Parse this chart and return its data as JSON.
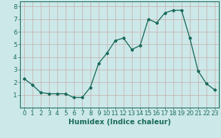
{
  "x": [
    0,
    1,
    2,
    3,
    4,
    5,
    6,
    7,
    8,
    9,
    10,
    11,
    12,
    13,
    14,
    15,
    16,
    17,
    18,
    19,
    20,
    21,
    22,
    23
  ],
  "y": [
    2.3,
    1.8,
    1.2,
    1.1,
    1.1,
    1.1,
    0.8,
    0.8,
    1.6,
    3.5,
    4.3,
    5.3,
    5.5,
    4.6,
    4.9,
    7.0,
    6.7,
    7.5,
    7.7,
    7.7,
    5.5,
    2.9,
    1.9,
    1.4
  ],
  "line_color": "#1a6b5a",
  "marker": "D",
  "marker_size": 2.0,
  "linewidth": 1.0,
  "xlabel": "Humidex (Indice chaleur)",
  "xlim": [
    -0.5,
    23.5
  ],
  "ylim": [
    0,
    8.4
  ],
  "xticks": [
    0,
    1,
    2,
    3,
    4,
    5,
    6,
    7,
    8,
    9,
    10,
    11,
    12,
    13,
    14,
    15,
    16,
    17,
    18,
    19,
    20,
    21,
    22,
    23
  ],
  "yticks": [
    1,
    2,
    3,
    4,
    5,
    6,
    7,
    8
  ],
  "bg_color": "#cce8e8",
  "grid_color": "#c8a8a8",
  "axis_color": "#1a6b5a",
  "xlabel_fontsize": 7.5,
  "tick_fontsize": 6.5
}
